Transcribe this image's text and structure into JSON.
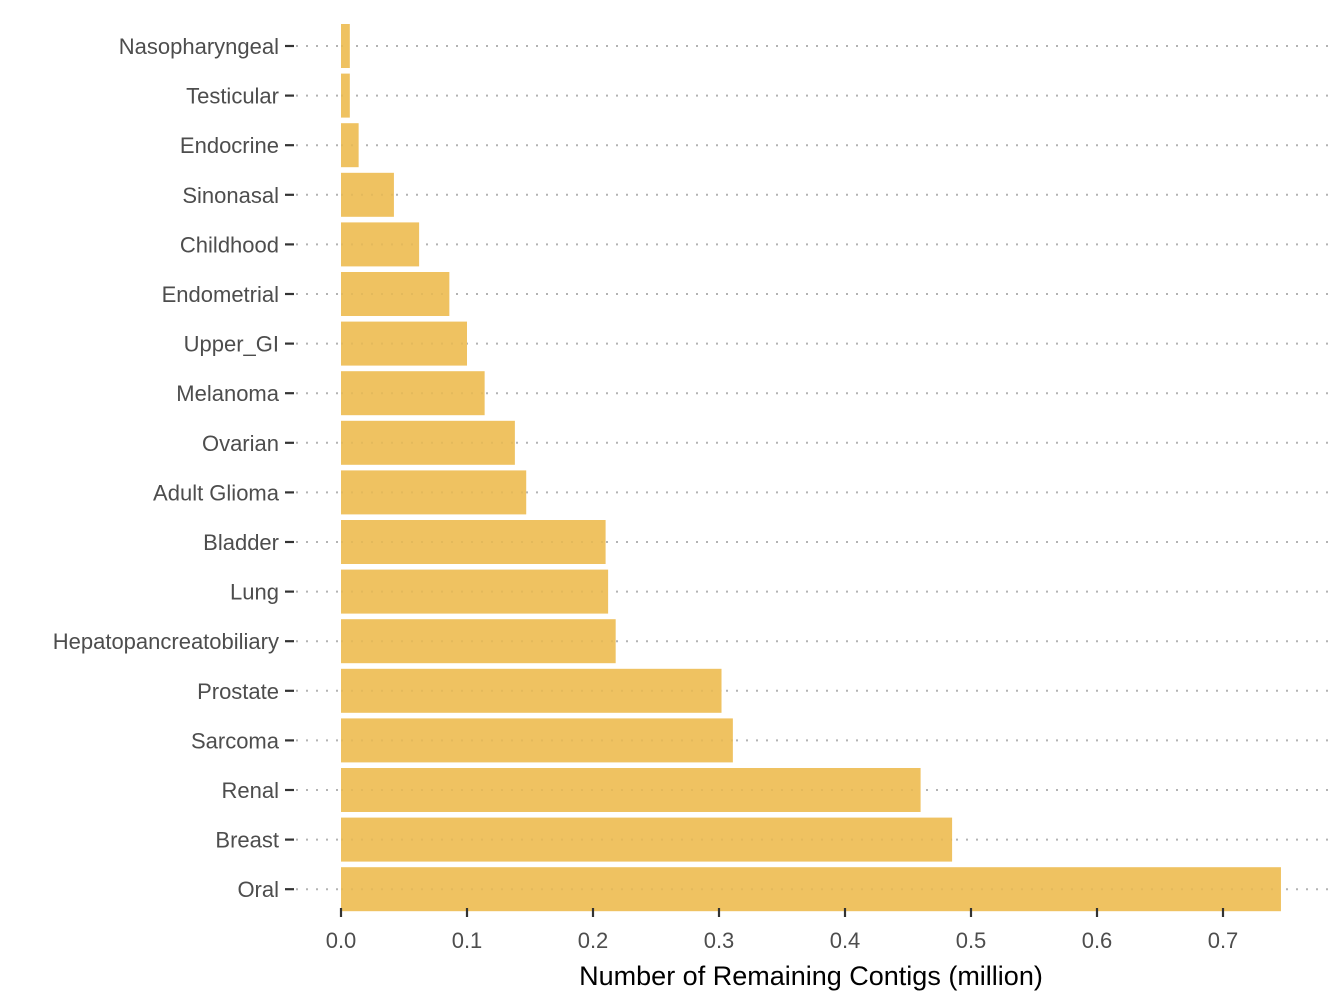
{
  "chart_data": {
    "type": "bar",
    "orientation": "horizontal",
    "categories": [
      "Nasopharyngeal",
      "Testicular",
      "Endocrine",
      "Sinonasal",
      "Childhood",
      "Endometrial",
      "Upper_GI",
      "Melanoma",
      "Ovarian",
      "Adult Glioma",
      "Bladder",
      "Lung",
      "Hepatopancreatobiliary",
      "Prostate",
      "Sarcoma",
      "Renal",
      "Breast",
      "Oral"
    ],
    "values": [
      0.007,
      0.007,
      0.014,
      0.042,
      0.062,
      0.086,
      0.1,
      0.114,
      0.138,
      0.147,
      0.21,
      0.212,
      0.218,
      0.302,
      0.311,
      0.46,
      0.485,
      0.746
    ],
    "title": "",
    "xlabel": "Number of Remaining Contigs (million)",
    "ylabel": "",
    "xlim": [
      0,
      0.75
    ],
    "xticks": [
      0.0,
      0.1,
      0.2,
      0.3,
      0.4,
      0.5,
      0.6,
      0.7
    ],
    "xtick_labels": [
      "0.0",
      "0.1",
      "0.2",
      "0.3",
      "0.4",
      "0.5",
      "0.6",
      "0.7"
    ],
    "grid": "horizontal dotted",
    "bar_color": "#efc261",
    "grid_color": "#b3b3b3"
  }
}
